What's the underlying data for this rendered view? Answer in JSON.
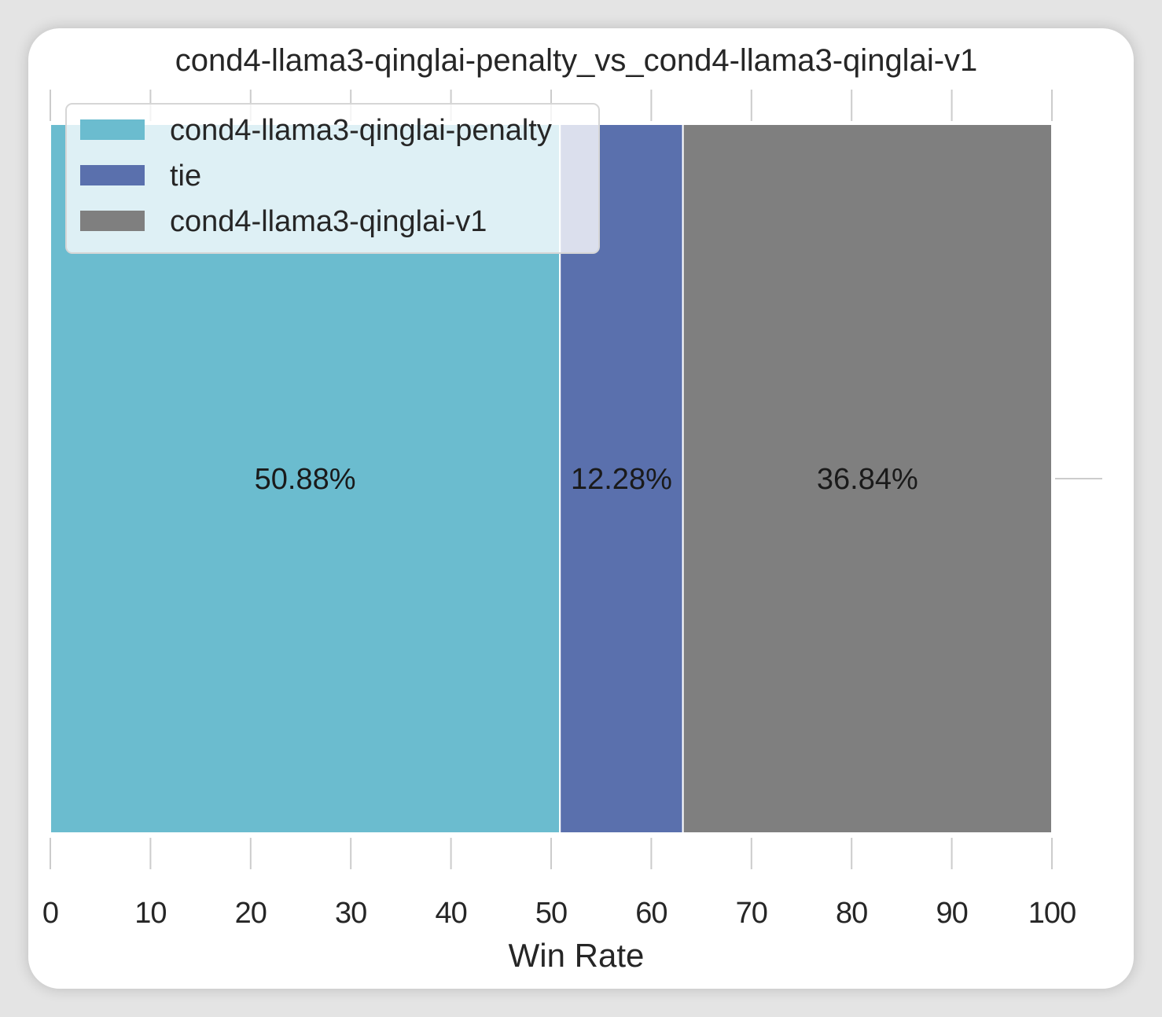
{
  "chart_data": {
    "type": "bar",
    "orientation": "horizontal-stacked",
    "title": "cond4-llama3-qinglai-penalty_vs_cond4-llama3-qinglai-v1",
    "xlabel": "Win Rate",
    "ylabel": "",
    "xlim": [
      0,
      100
    ],
    "x_ticks": [
      "0",
      "10",
      "20",
      "30",
      "40",
      "50",
      "60",
      "70",
      "80",
      "90",
      "100"
    ],
    "legend_position": "upper-left",
    "grid": true,
    "series": [
      {
        "name": "cond4-llama3-qinglai-penalty",
        "value": 50.88,
        "label": "50.88%",
        "color": "#6bbccf"
      },
      {
        "name": "tie",
        "value": 12.28,
        "label": "12.28%",
        "color": "#5a70ad"
      },
      {
        "name": "cond4-llama3-qinglai-v1",
        "value": 36.84,
        "label": "36.84%",
        "color": "#7f7f7f"
      }
    ]
  }
}
